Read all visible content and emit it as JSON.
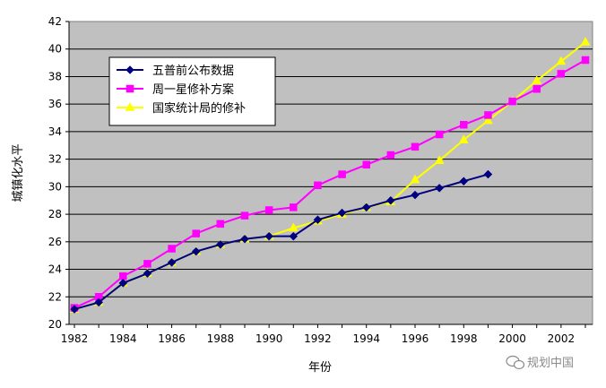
{
  "chart_data": {
    "type": "line",
    "title": "",
    "xlabel": "年份",
    "ylabel": "城镇化水平",
    "xlim": [
      1982,
      2003
    ],
    "ylim": [
      20,
      42
    ],
    "x_ticks": [
      "1982",
      "1984",
      "1986",
      "1988",
      "1990",
      "1992",
      "1994",
      "1996",
      "1998",
      "2000",
      "2002"
    ],
    "y_ticks": [
      "20",
      "22",
      "24",
      "26",
      "28",
      "30",
      "32",
      "34",
      "36",
      "38",
      "40",
      "42"
    ],
    "grid": "horizontal",
    "legend_position": "top-left",
    "series": [
      {
        "name": "五普前公布数据",
        "color": "#000080",
        "marker": "diamond",
        "x": [
          1982,
          1983,
          1984,
          1985,
          1986,
          1987,
          1988,
          1989,
          1990,
          1991,
          1992,
          1993,
          1994,
          1995,
          1996,
          1997,
          1998,
          1999
        ],
        "y": [
          21.1,
          21.6,
          23.0,
          23.7,
          24.5,
          25.3,
          25.8,
          26.2,
          26.4,
          26.4,
          27.6,
          28.1,
          28.5,
          29.0,
          29.4,
          29.9,
          30.4,
          30.9
        ]
      },
      {
        "name": "周一星修补方案",
        "color": "#ff00ff",
        "marker": "square",
        "x": [
          1982,
          1983,
          1984,
          1985,
          1986,
          1987,
          1988,
          1989,
          1990,
          1991,
          1992,
          1993,
          1994,
          1995,
          1996,
          1997,
          1998,
          1999,
          2000,
          2001,
          2002,
          2003
        ],
        "y": [
          21.2,
          22.0,
          23.5,
          24.4,
          25.5,
          26.6,
          27.3,
          27.9,
          28.3,
          28.5,
          30.1,
          30.9,
          31.6,
          32.3,
          32.9,
          33.8,
          34.5,
          35.2,
          36.2,
          37.1,
          38.2,
          39.2
        ]
      },
      {
        "name": "国家统计局的修补",
        "color": "#ffff00",
        "marker": "triangle",
        "x": [
          1982,
          1983,
          1984,
          1985,
          1986,
          1987,
          1988,
          1989,
          1990,
          1991,
          1992,
          1993,
          1994,
          1995,
          1996,
          1997,
          1998,
          1999,
          2000,
          2001,
          2002,
          2003
        ],
        "y": [
          21.1,
          21.6,
          23.0,
          23.7,
          24.5,
          25.3,
          25.8,
          26.2,
          26.4,
          27.0,
          27.5,
          28.0,
          28.5,
          28.9,
          30.5,
          31.9,
          33.4,
          34.8,
          36.2,
          37.7,
          39.1,
          40.5
        ]
      }
    ]
  },
  "watermark": "规划中国"
}
